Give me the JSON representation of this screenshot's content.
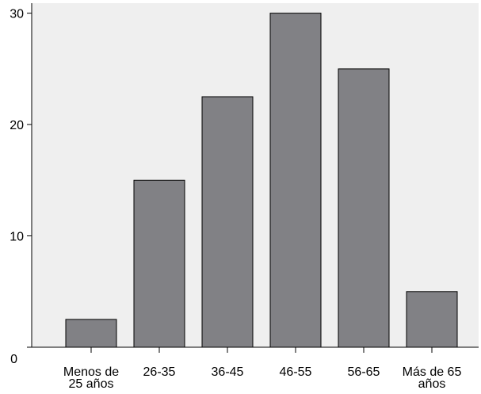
{
  "chart_data": {
    "type": "bar",
    "categories": [
      [
        "Menos de",
        "25 años"
      ],
      [
        "26-35"
      ],
      [
        "36-45"
      ],
      [
        "46-55"
      ],
      [
        "56-65"
      ],
      [
        "Más de 65",
        "años"
      ]
    ],
    "values": [
      2.5,
      15,
      22.5,
      30,
      25,
      5
    ],
    "yticks": [
      "0",
      "10",
      "20",
      "30"
    ],
    "ylim": [
      0,
      30.9
    ],
    "title": "",
    "xlabel": "",
    "ylabel": "",
    "grid": false,
    "colors": {
      "plot_background": "#efefef",
      "bar_fill": "#818185",
      "bar_stroke": "#000000",
      "axis": "#000000"
    }
  }
}
